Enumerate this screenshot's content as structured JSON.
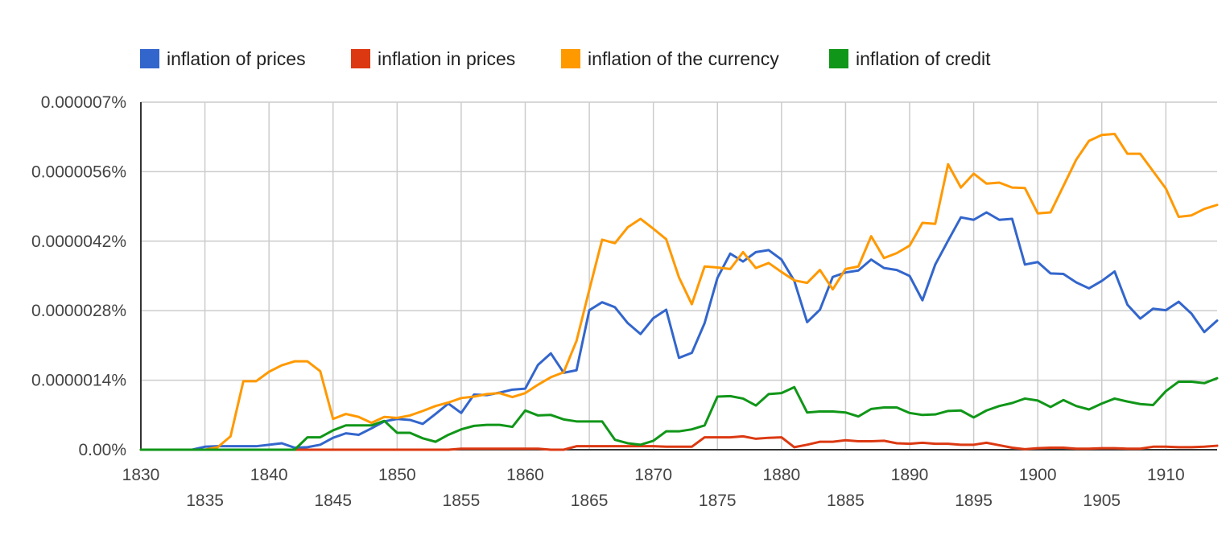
{
  "chart_data": {
    "type": "line",
    "title": "",
    "xlabel": "",
    "ylabel": "",
    "xlim": [
      1830,
      1914
    ],
    "ylim": [
      0,
      7e-06
    ],
    "grid": true,
    "legend_position": "top-left",
    "y_ticks": [
      {
        "value": 0,
        "label": "0.00%"
      },
      {
        "value": 1.4e-06,
        "label": "0.0000014%"
      },
      {
        "value": 2.8e-06,
        "label": "0.0000028%"
      },
      {
        "value": 4.2e-06,
        "label": "0.0000042%"
      },
      {
        "value": 5.6e-06,
        "label": "0.0000056%"
      },
      {
        "value": 7e-06,
        "label": "0.000007%"
      }
    ],
    "x_ticks": [
      {
        "value": 1830,
        "label": "1830",
        "row": 0
      },
      {
        "value": 1835,
        "label": "1835",
        "row": 1
      },
      {
        "value": 1840,
        "label": "1840",
        "row": 0
      },
      {
        "value": 1845,
        "label": "1845",
        "row": 1
      },
      {
        "value": 1850,
        "label": "1850",
        "row": 0
      },
      {
        "value": 1855,
        "label": "1855",
        "row": 1
      },
      {
        "value": 1860,
        "label": "1860",
        "row": 0
      },
      {
        "value": 1865,
        "label": "1865",
        "row": 1
      },
      {
        "value": 1870,
        "label": "1870",
        "row": 0
      },
      {
        "value": 1875,
        "label": "1875",
        "row": 1
      },
      {
        "value": 1880,
        "label": "1880",
        "row": 0
      },
      {
        "value": 1885,
        "label": "1885",
        "row": 1
      },
      {
        "value": 1890,
        "label": "1890",
        "row": 0
      },
      {
        "value": 1895,
        "label": "1895",
        "row": 1
      },
      {
        "value": 1900,
        "label": "1900",
        "row": 0
      },
      {
        "value": 1905,
        "label": "1905",
        "row": 1
      },
      {
        "value": 1910,
        "label": "1910",
        "row": 0
      }
    ],
    "x": [
      1830,
      1831,
      1832,
      1833,
      1834,
      1835,
      1836,
      1837,
      1838,
      1839,
      1840,
      1841,
      1842,
      1843,
      1844,
      1845,
      1846,
      1847,
      1848,
      1849,
      1850,
      1851,
      1852,
      1853,
      1854,
      1855,
      1856,
      1857,
      1858,
      1859,
      1860,
      1861,
      1862,
      1863,
      1864,
      1865,
      1866,
      1867,
      1868,
      1869,
      1870,
      1871,
      1872,
      1873,
      1874,
      1875,
      1876,
      1877,
      1878,
      1879,
      1880,
      1881,
      1882,
      1883,
      1884,
      1885,
      1886,
      1887,
      1888,
      1889,
      1890,
      1891,
      1892,
      1893,
      1894,
      1895,
      1896,
      1897,
      1898,
      1899,
      1900,
      1901,
      1902,
      1903,
      1904,
      1905,
      1906,
      1907,
      1908,
      1909,
      1910,
      1911,
      1912,
      1913,
      1914
    ],
    "series": [
      {
        "name": "inflation of prices",
        "color": "#3366cc",
        "values": [
          0,
          0,
          0,
          0,
          0,
          6e-08,
          7e-08,
          7e-08,
          7e-08,
          7e-08,
          1e-07,
          1.3e-07,
          4e-08,
          5e-08,
          1e-07,
          2.4e-07,
          3.3e-07,
          3e-07,
          4.3e-07,
          5.7e-07,
          6.2e-07,
          6e-07,
          5.2e-07,
          7.2e-07,
          9.3e-07,
          7.4e-07,
          1.11e-06,
          1.1e-06,
          1.15e-06,
          1.21e-06,
          1.23e-06,
          1.71e-06,
          1.94e-06,
          1.55e-06,
          1.6e-06,
          2.81e-06,
          2.97e-06,
          2.87e-06,
          2.55e-06,
          2.33e-06,
          2.65e-06,
          2.82e-06,
          1.85e-06,
          1.95e-06,
          2.55e-06,
          3.46e-06,
          3.95e-06,
          3.79e-06,
          3.98e-06,
          4.02e-06,
          3.83e-06,
          3.4e-06,
          2.57e-06,
          2.82e-06,
          3.48e-06,
          3.57e-06,
          3.61e-06,
          3.83e-06,
          3.66e-06,
          3.62e-06,
          3.5e-06,
          3.01e-06,
          3.73e-06,
          4.21e-06,
          4.68e-06,
          4.63e-06,
          4.78e-06,
          4.63e-06,
          4.65e-06,
          3.73e-06,
          3.78e-06,
          3.55e-06,
          3.54e-06,
          3.37e-06,
          3.25e-06,
          3.4e-06,
          3.59e-06,
          2.92e-06,
          2.64e-06,
          2.84e-06,
          2.81e-06,
          2.98e-06,
          2.74e-06,
          2.37e-06,
          2.6e-06
        ]
      },
      {
        "name": "inflation in prices",
        "color": "#dc3912",
        "values": [
          0,
          0,
          0,
          0,
          0,
          0,
          0,
          0,
          0,
          0,
          0,
          0,
          0,
          0,
          0,
          0,
          0,
          0,
          0,
          0,
          0,
          0,
          0,
          0,
          0,
          2e-08,
          2e-08,
          2e-08,
          2e-08,
          2e-08,
          2e-08,
          2e-08,
          0,
          0,
          7e-08,
          7e-08,
          7e-08,
          7e-08,
          7e-08,
          7e-08,
          7e-08,
          6e-08,
          6e-08,
          6e-08,
          2.5e-07,
          2.5e-07,
          2.5e-07,
          2.7e-07,
          2.2e-07,
          2.4e-07,
          2.5e-07,
          5e-08,
          1e-07,
          1.6e-07,
          1.6e-07,
          1.9e-07,
          1.7e-07,
          1.7e-07,
          1.8e-07,
          1.3e-07,
          1.2e-07,
          1.4e-07,
          1.2e-07,
          1.2e-07,
          1e-07,
          1e-07,
          1.4e-07,
          9e-08,
          4e-08,
          1e-08,
          3e-08,
          4e-08,
          4e-08,
          2e-08,
          2e-08,
          3e-08,
          3e-08,
          2e-08,
          2e-08,
          6e-08,
          6e-08,
          5e-08,
          5e-08,
          6e-08,
          8e-08
        ]
      },
      {
        "name": "inflation of the currency",
        "color": "#ff9900",
        "values": [
          0,
          0,
          0,
          0,
          0,
          0,
          5e-08,
          2.7e-07,
          1.38e-06,
          1.38e-06,
          1.57e-06,
          1.7e-06,
          1.78e-06,
          1.78e-06,
          1.58e-06,
          6.2e-07,
          7.2e-07,
          6.6e-07,
          5.4e-07,
          6.6e-07,
          6.4e-07,
          6.9e-07,
          7.8e-07,
          8.8e-07,
          9.5e-07,
          1.04e-06,
          1.07e-06,
          1.12e-06,
          1.14e-06,
          1.06e-06,
          1.14e-06,
          1.31e-06,
          1.46e-06,
          1.56e-06,
          2.19e-06,
          3.22e-06,
          4.23e-06,
          4.16e-06,
          4.48e-06,
          4.65e-06,
          4.45e-06,
          4.24e-06,
          3.47e-06,
          2.93e-06,
          3.69e-06,
          3.67e-06,
          3.64e-06,
          3.98e-06,
          3.66e-06,
          3.76e-06,
          3.58e-06,
          3.41e-06,
          3.36e-06,
          3.62e-06,
          3.23e-06,
          3.64e-06,
          3.69e-06,
          4.3e-06,
          3.86e-06,
          3.96e-06,
          4.11e-06,
          4.57e-06,
          4.55e-06,
          5.75e-06,
          5.28e-06,
          5.56e-06,
          5.36e-06,
          5.38e-06,
          5.28e-06,
          5.27e-06,
          4.76e-06,
          4.78e-06,
          5.31e-06,
          5.84e-06,
          6.22e-06,
          6.34e-06,
          6.36e-06,
          5.96e-06,
          5.96e-06,
          5.61e-06,
          5.26e-06,
          4.69e-06,
          4.72e-06,
          4.85e-06,
          4.93e-06
        ]
      },
      {
        "name": "inflation of credit",
        "color": "#109618",
        "values": [
          0,
          0,
          0,
          0,
          0,
          0,
          0,
          0,
          0,
          0,
          0,
          0,
          0,
          2.5e-07,
          2.5e-07,
          3.9e-07,
          4.9e-07,
          4.9e-07,
          4.9e-07,
          5.8e-07,
          3.4e-07,
          3.4e-07,
          2.3e-07,
          1.6e-07,
          3e-07,
          4.1e-07,
          4.8e-07,
          5e-07,
          5e-07,
          4.6e-07,
          7.9e-07,
          6.9e-07,
          7e-07,
          6.1e-07,
          5.7e-07,
          5.7e-07,
          5.7e-07,
          2e-07,
          1.3e-07,
          1e-07,
          1.8e-07,
          3.7e-07,
          3.7e-07,
          4.1e-07,
          4.9e-07,
          1.07e-06,
          1.08e-06,
          1.03e-06,
          8.9e-07,
          1.12e-06,
          1.14e-06,
          1.26e-06,
          7.5e-07,
          7.7e-07,
          7.7e-07,
          7.5e-07,
          6.7e-07,
          8.2e-07,
          8.5e-07,
          8.5e-07,
          7.4e-07,
          7e-07,
          7.1e-07,
          7.8e-07,
          7.9e-07,
          6.5e-07,
          7.9e-07,
          8.8e-07,
          9.4e-07,
          1.03e-06,
          9.9e-07,
          8.6e-07,
          1e-06,
          8.8e-07,
          8.1e-07,
          9.3e-07,
          1.03e-06,
          9.7e-07,
          9.2e-07,
          9e-07,
          1.18e-06,
          1.37e-06,
          1.37e-06,
          1.34e-06,
          1.44e-06
        ]
      }
    ]
  }
}
